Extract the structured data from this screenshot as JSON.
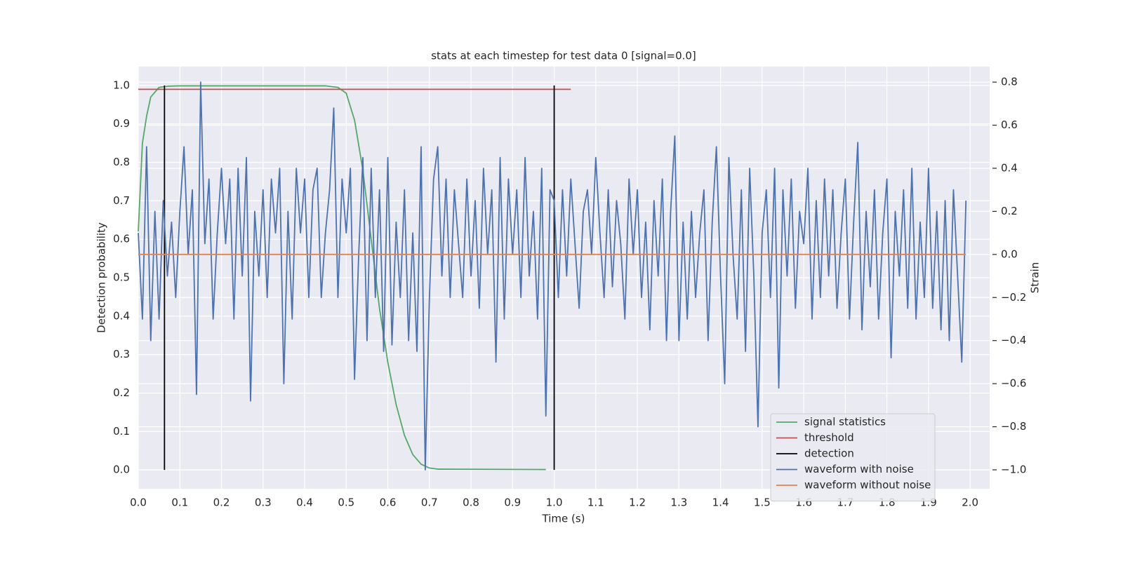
{
  "chart_data": {
    "type": "line",
    "title": "stats at each timestep for test data 0 [signal=0.0]",
    "x_label": "Time (s)",
    "y_label": "Detection probability",
    "y2_label": "Strain",
    "xlim": [
      0,
      2.047
    ],
    "ylim": [
      -0.049,
      1.049
    ],
    "y2lim": [
      -1.088,
      0.872
    ],
    "xticks": [
      {
        "value": 0,
        "label": "0.0"
      },
      0.1,
      0.2,
      0.3,
      0.4,
      0.5,
      0.6,
      0.7,
      0.8,
      0.9,
      {
        "value": 1,
        "label": "1.0"
      },
      1.1,
      1.2,
      1.3,
      1.4,
      1.5,
      1.6,
      1.7,
      1.8,
      1.9,
      {
        "value": 2,
        "label": "2.0"
      }
    ],
    "yticks": [
      {
        "value": 0,
        "label": "0.0"
      },
      0.1,
      0.2,
      0.3,
      0.4,
      0.5,
      0.6,
      0.7,
      0.8,
      0.9,
      {
        "value": 1,
        "label": "1.0"
      }
    ],
    "y2ticks": [
      {
        "value": -1,
        "label": "−1.0"
      },
      {
        "value": -0.8,
        "label": "−0.8"
      },
      {
        "value": -0.6,
        "label": "−0.6"
      },
      {
        "value": -0.4,
        "label": "−0.4"
      },
      {
        "value": -0.2,
        "label": "−0.2"
      },
      {
        "value": 0,
        "label": "0.0"
      },
      0.2,
      0.4,
      0.6,
      0.8
    ],
    "grid": true,
    "legend": "lower right",
    "series": [
      {
        "name": "signal statistics",
        "color": "#55a868",
        "x": [
          0,
          0.01,
          0.02,
          0.03,
          0.05,
          0.07,
          0.1,
          0.45,
          0.48,
          0.5,
          0.52,
          0.54,
          0.56,
          0.58,
          0.6,
          0.62,
          0.64,
          0.66,
          0.68,
          0.7,
          0.72,
          0.98
        ],
        "values": [
          0.62,
          0.85,
          0.92,
          0.97,
          0.995,
          0.998,
          0.999,
          0.999,
          0.995,
          0.98,
          0.91,
          0.78,
          0.6,
          0.42,
          0.28,
          0.17,
          0.09,
          0.04,
          0.015,
          0.005,
          0.002,
          0.001
        ]
      },
      {
        "name": "threshold",
        "color": "#c44e52",
        "x": [
          0,
          1.04
        ],
        "values": [
          0.99,
          0.99
        ]
      },
      {
        "name": "detection",
        "color": "#000000",
        "x": [
          0.063,
          0.063,
          null,
          1.0,
          1.0
        ],
        "values": [
          0,
          1,
          null,
          0,
          1
        ]
      },
      {
        "name": "waveform with noise",
        "color": "#4c72b0",
        "axis": "y2",
        "x": [
          0,
          0.01,
          0.02,
          0.03,
          0.04,
          0.05,
          0.06,
          0.07,
          0.08,
          0.09,
          0.1,
          0.11,
          0.12,
          0.13,
          0.14,
          0.15,
          0.16,
          0.17,
          0.18,
          0.19,
          0.2,
          0.21,
          0.22,
          0.23,
          0.24,
          0.25,
          0.26,
          0.27,
          0.28,
          0.29,
          0.3,
          0.31,
          0.32,
          0.33,
          0.34,
          0.35,
          0.36,
          0.37,
          0.38,
          0.39,
          0.4,
          0.41,
          0.42,
          0.43,
          0.44,
          0.45,
          0.46,
          0.47,
          0.48,
          0.49,
          0.5,
          0.51,
          0.52,
          0.53,
          0.54,
          0.55,
          0.56,
          0.57,
          0.58,
          0.59,
          0.6,
          0.61,
          0.62,
          0.63,
          0.64,
          0.65,
          0.66,
          0.67,
          0.68,
          0.69,
          0.7,
          0.71,
          0.72,
          0.73,
          0.74,
          0.75,
          0.76,
          0.77,
          0.78,
          0.79,
          0.8,
          0.81,
          0.82,
          0.83,
          0.84,
          0.85,
          0.86,
          0.87,
          0.88,
          0.89,
          0.9,
          0.91,
          0.92,
          0.93,
          0.94,
          0.95,
          0.96,
          0.97,
          0.98,
          0.99,
          1.0,
          1.01,
          1.02,
          1.03,
          1.04,
          1.05,
          1.06,
          1.07,
          1.08,
          1.09,
          1.1,
          1.11,
          1.12,
          1.13,
          1.14,
          1.15,
          1.16,
          1.17,
          1.18,
          1.19,
          1.2,
          1.21,
          1.22,
          1.23,
          1.24,
          1.25,
          1.26,
          1.27,
          1.28,
          1.29,
          1.3,
          1.31,
          1.32,
          1.33,
          1.34,
          1.35,
          1.36,
          1.37,
          1.38,
          1.39,
          1.4,
          1.41,
          1.42,
          1.43,
          1.44,
          1.45,
          1.46,
          1.47,
          1.48,
          1.49,
          1.5,
          1.51,
          1.52,
          1.53,
          1.54,
          1.55,
          1.56,
          1.57,
          1.58,
          1.59,
          1.6,
          1.61,
          1.62,
          1.63,
          1.64,
          1.65,
          1.66,
          1.67,
          1.68,
          1.69,
          1.7,
          1.71,
          1.72,
          1.73,
          1.74,
          1.75,
          1.76,
          1.77,
          1.78,
          1.79,
          1.8,
          1.81,
          1.82,
          1.83,
          1.84,
          1.85,
          1.86,
          1.87,
          1.88,
          1.89,
          1.9,
          1.91,
          1.92,
          1.93,
          1.94,
          1.95,
          1.96,
          1.97,
          1.98,
          1.99
        ],
        "values": [
          0.1,
          -0.3,
          0.5,
          -0.4,
          0.2,
          -0.3,
          0.25,
          -0.1,
          0.15,
          -0.2,
          0.2,
          0.5,
          0.0,
          0.3,
          -0.65,
          0.8,
          0.05,
          0.35,
          -0.3,
          0.1,
          0.4,
          0.05,
          0.35,
          -0.3,
          0.4,
          -0.1,
          0.45,
          -0.68,
          0.2,
          -0.1,
          0.3,
          -0.2,
          0.35,
          0.1,
          0.4,
          -0.6,
          0.2,
          -0.3,
          0.4,
          0.1,
          0.35,
          -0.2,
          0.3,
          0.4,
          -0.2,
          0.1,
          0.3,
          0.68,
          -0.2,
          0.35,
          0.1,
          0.4,
          -0.58,
          0.0,
          0.45,
          -0.4,
          0.4,
          -0.2,
          0.3,
          -0.45,
          0.45,
          -0.42,
          0.15,
          -0.2,
          0.3,
          -0.4,
          0.1,
          -0.45,
          0.5,
          -1.0,
          -0.2,
          0.35,
          0.5,
          -0.1,
          0.35,
          -0.2,
          0.3,
          0.05,
          -0.2,
          0.35,
          -0.1,
          0.25,
          -0.25,
          0.4,
          0.0,
          0.3,
          -0.5,
          0.45,
          -0.3,
          0.35,
          0.0,
          0.3,
          -0.2,
          0.45,
          -0.1,
          0.2,
          -0.3,
          0.4,
          -0.75,
          0.3,
          0.25,
          -0.2,
          0.3,
          -0.1,
          0.35,
          0.05,
          -0.25,
          0.2,
          0.3,
          0.0,
          0.45,
          0.1,
          -0.2,
          0.3,
          -0.15,
          0.25,
          0.05,
          -0.3,
          0.35,
          0.0,
          0.3,
          -0.2,
          0.15,
          -0.35,
          0.25,
          -0.1,
          0.35,
          -0.4,
          0.2,
          0.55,
          -0.4,
          0.15,
          -0.3,
          0.2,
          -0.2,
          0.1,
          0.3,
          -0.4,
          0.15,
          0.5,
          -0.1,
          -0.6,
          0.45,
          0.0,
          -0.3,
          0.3,
          -0.45,
          0.4,
          -0.1,
          -0.8,
          0.1,
          0.3,
          -0.2,
          0.4,
          -0.62,
          0.3,
          -0.1,
          0.35,
          -0.25,
          0.2,
          0.05,
          0.4,
          -0.3,
          0.25,
          -0.2,
          0.35,
          -0.1,
          0.3,
          -0.25,
          0.1,
          0.35,
          -0.3,
          0.15,
          0.52,
          -0.35,
          0.2,
          -0.15,
          0.3,
          -0.3,
          0.1,
          0.35,
          -0.48,
          0.2,
          -0.1,
          0.3,
          -0.25,
          0.4,
          -0.3,
          0.15,
          -0.2,
          0.4,
          -0.25,
          0.2,
          -0.35,
          0.25,
          -0.4,
          0.3,
          -0.1,
          -0.5,
          0.25
        ]
      },
      {
        "name": "waveform without noise",
        "color": "#dd8452",
        "axis": "y2",
        "x": [
          0,
          1.99
        ],
        "values": [
          0,
          0
        ]
      }
    ]
  }
}
